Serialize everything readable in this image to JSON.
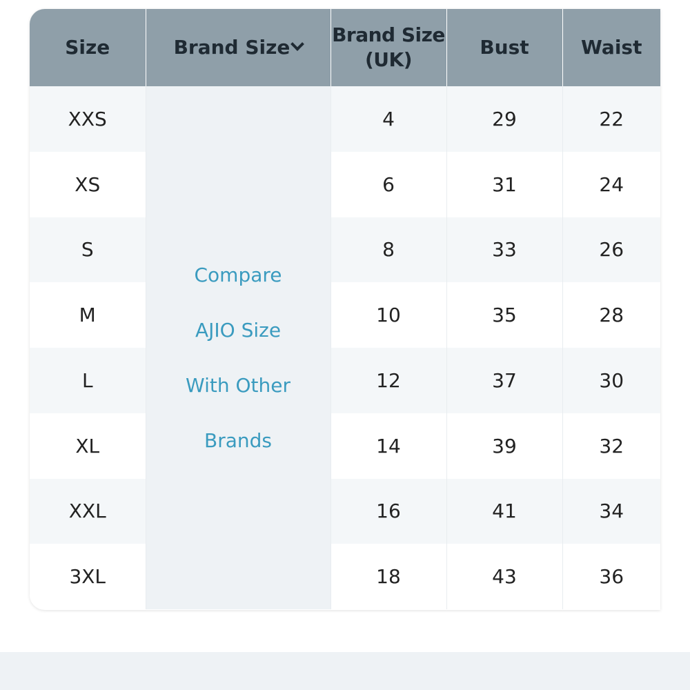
{
  "table": {
    "headers": {
      "size": "Size",
      "brand_size": "Brand Size",
      "brand_size_uk_line1": "Brand Size",
      "brand_size_uk_line2": "(UK)",
      "bust": "Bust",
      "waist": "Waist"
    },
    "compare_link": {
      "line1": "Compare",
      "line2": "AJIO Size",
      "line3": "With Other",
      "line4": "Brands"
    },
    "rows": [
      {
        "size": "XXS",
        "uk": "4",
        "bust": "29",
        "waist": "22"
      },
      {
        "size": "XS",
        "uk": "6",
        "bust": "31",
        "waist": "24"
      },
      {
        "size": "S",
        "uk": "8",
        "bust": "33",
        "waist": "26"
      },
      {
        "size": "M",
        "uk": "10",
        "bust": "35",
        "waist": "28"
      },
      {
        "size": "L",
        "uk": "12",
        "bust": "37",
        "waist": "30"
      },
      {
        "size": "XL",
        "uk": "14",
        "bust": "39",
        "waist": "32"
      },
      {
        "size": "XXL",
        "uk": "16",
        "bust": "41",
        "waist": "34"
      },
      {
        "size": "3XL",
        "uk": "18",
        "bust": "43",
        "waist": "36"
      }
    ]
  },
  "colors": {
    "header_bg": "#8f9fa9",
    "link": "#3a9bbf",
    "row_alt": "#f4f7f9"
  },
  "icons": {
    "dropdown": "chevron-down-icon"
  }
}
